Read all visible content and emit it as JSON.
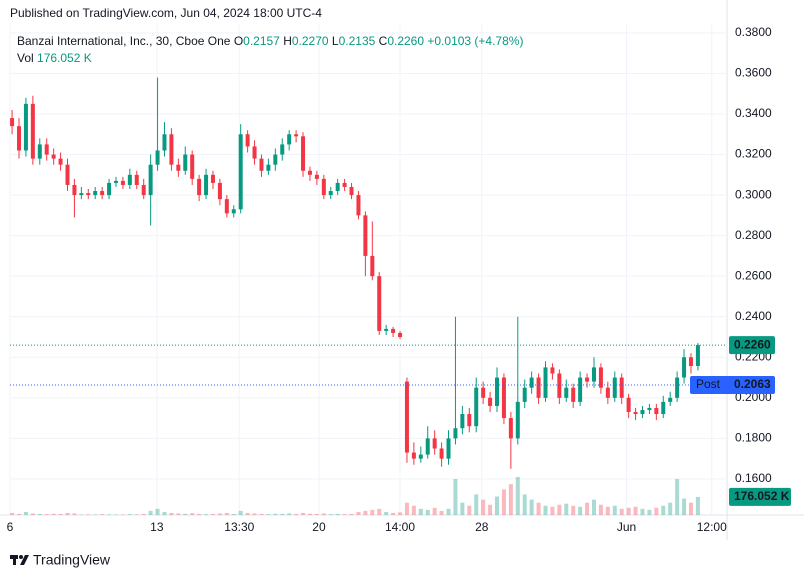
{
  "header": {
    "published": "Published on TradingView.com, Jun 04, 2024 18:00 UTC-4"
  },
  "chart_data": {
    "type": "candlestick",
    "title": "Banzai International, Inc., 30, Cboe One",
    "legend": {
      "o_label": "O",
      "open": "0.2157",
      "h_label": "H",
      "high": "0.2270",
      "l_label": "L",
      "low": "0.2135",
      "c_label": "C",
      "close": "0.2260",
      "change": "+0.0103 (+4.78%)",
      "vol_label": "Vol",
      "volume": "176.052 K"
    },
    "up_color": "#089981",
    "down_color": "#f23645",
    "grid": true,
    "categories": [
      null,
      null,
      null,
      null,
      null,
      null,
      null,
      null,
      null,
      null,
      null,
      null,
      null,
      null,
      null,
      null,
      null,
      null,
      null,
      null,
      null,
      null,
      null,
      null,
      null,
      null,
      null,
      null,
      null,
      null,
      null,
      null,
      null,
      null,
      null,
      null,
      null,
      null,
      null,
      null,
      null,
      null,
      null,
      null,
      null,
      null,
      null,
      null,
      null,
      null,
      null,
      null,
      null,
      null,
      null,
      null,
      null,
      null,
      null,
      null,
      null,
      null,
      null,
      null,
      null,
      null,
      null,
      null,
      null,
      null,
      null,
      null,
      null,
      null,
      null,
      null,
      null,
      null,
      null,
      null,
      null,
      null,
      null,
      null,
      null,
      null,
      null,
      null,
      null,
      null,
      null,
      null,
      null,
      null,
      null,
      null,
      null,
      null,
      null,
      null
    ],
    "xlim": [
      -0.3,
      103.2
    ],
    "xticks": [
      {
        "value": -0.3,
        "label": "6"
      },
      {
        "value": 20.9,
        "label": "13"
      },
      {
        "value": 32.8,
        "label": "13:30"
      },
      {
        "value": 44.3,
        "label": "20"
      },
      {
        "value": 56,
        "label": "14:00"
      },
      {
        "value": 67.8,
        "label": "28"
      },
      {
        "value": 88.7,
        "label": "Jun"
      },
      {
        "value": 101,
        "label": "12:00"
      }
    ],
    "ylim": [
      0.1422,
      0.3839
    ],
    "yticks": [
      {
        "value": 0.16,
        "label": "0.1600"
      },
      {
        "value": 0.18,
        "label": "0.1800"
      },
      {
        "value": 0.2,
        "label": "0.2000"
      },
      {
        "value": 0.22,
        "label": "0.2200"
      },
      {
        "value": 0.24,
        "label": "0.2400"
      },
      {
        "value": 0.26,
        "label": "0.2600"
      },
      {
        "value": 0.28,
        "label": "0.2800"
      },
      {
        "value": 0.3,
        "label": "0.3000"
      },
      {
        "value": 0.32,
        "label": "0.3200"
      },
      {
        "value": 0.34,
        "label": "0.3400"
      },
      {
        "value": 0.36,
        "label": "0.3600"
      },
      {
        "value": 0.38,
        "label": "0.3800"
      }
    ],
    "open": [
      0.338,
      0.334,
      0.322,
      0.345,
      0.318,
      0.325,
      0.32,
      0.318,
      0.315,
      0.305,
      0.3,
      0.301,
      0.3,
      0.302,
      0.3,
      0.306,
      0.307,
      0.305,
      0.31,
      0.305,
      0.3,
      0.315,
      0.322,
      0.33,
      0.315,
      0.312,
      0.32,
      0.308,
      0.3,
      0.31,
      0.306,
      0.298,
      0.291,
      0.293,
      0.33,
      0.324,
      0.318,
      0.312,
      0.315,
      0.32,
      0.325,
      0.33,
      0.329,
      0.312,
      0.31,
      0.308,
      0.3,
      0.302,
      0.306,
      0.304,
      0.3,
      0.29,
      0.27,
      0.26,
      0.233,
      0.234,
      0.232,
      0.208,
      0.173,
      0.17,
      0.172,
      0.18,
      0.175,
      0.17,
      0.18,
      0.185,
      0.192,
      0.186,
      0.205,
      0.2,
      0.196,
      0.21,
      0.19,
      0.18,
      0.198,
      0.205,
      0.21,
      0.2,
      0.215,
      0.212,
      0.2,
      0.205,
      0.198,
      0.21,
      0.208,
      0.215,
      0.205,
      0.2,
      0.21,
      0.2,
      0.193,
      0.192,
      0.194,
      0.195,
      0.192,
      0.198,
      0.2,
      0.21,
      0.22,
      0.2157
    ],
    "high": [
      0.342,
      0.338,
      0.348,
      0.349,
      0.328,
      0.328,
      0.323,
      0.321,
      0.318,
      0.308,
      0.304,
      0.303,
      0.304,
      0.304,
      0.308,
      0.309,
      0.309,
      0.313,
      0.312,
      0.308,
      0.32,
      0.358,
      0.336,
      0.333,
      0.318,
      0.324,
      0.322,
      0.31,
      0.313,
      0.312,
      0.308,
      0.3,
      0.295,
      0.335,
      0.332,
      0.327,
      0.32,
      0.318,
      0.323,
      0.328,
      0.332,
      0.332,
      0.331,
      0.314,
      0.312,
      0.31,
      0.304,
      0.308,
      0.308,
      0.306,
      0.302,
      0.292,
      0.287,
      0.262,
      0.236,
      0.235,
      0.233,
      0.21,
      0.178,
      0.176,
      0.186,
      0.184,
      0.178,
      0.184,
      0.24,
      0.196,
      0.195,
      0.21,
      0.208,
      0.203,
      0.215,
      0.212,
      0.193,
      0.24,
      0.209,
      0.213,
      0.212,
      0.218,
      0.217,
      0.214,
      0.209,
      0.207,
      0.213,
      0.212,
      0.22,
      0.217,
      0.208,
      0.213,
      0.212,
      0.202,
      0.195,
      0.196,
      0.197,
      0.197,
      0.201,
      0.203,
      0.213,
      0.224,
      0.222,
      0.227
    ],
    "low": [
      0.33,
      0.318,
      0.319,
      0.315,
      0.315,
      0.317,
      0.315,
      0.312,
      0.302,
      0.289,
      0.298,
      0.298,
      0.298,
      0.298,
      0.298,
      0.304,
      0.303,
      0.303,
      0.303,
      0.298,
      0.285,
      0.312,
      0.319,
      0.312,
      0.309,
      0.31,
      0.305,
      0.297,
      0.298,
      0.303,
      0.295,
      0.289,
      0.289,
      0.291,
      0.321,
      0.315,
      0.309,
      0.31,
      0.312,
      0.317,
      0.322,
      0.326,
      0.309,
      0.307,
      0.305,
      0.298,
      0.298,
      0.3,
      0.302,
      0.298,
      0.288,
      0.26,
      0.258,
      0.231,
      0.231,
      0.23,
      0.229,
      0.168,
      0.167,
      0.168,
      0.17,
      0.172,
      0.166,
      0.167,
      0.177,
      0.182,
      0.183,
      0.183,
      0.197,
      0.193,
      0.193,
      0.187,
      0.165,
      0.177,
      0.195,
      0.202,
      0.197,
      0.198,
      0.209,
      0.197,
      0.198,
      0.195,
      0.196,
      0.205,
      0.205,
      0.202,
      0.197,
      0.198,
      0.197,
      0.19,
      0.189,
      0.19,
      0.192,
      0.189,
      0.19,
      0.196,
      0.198,
      0.207,
      0.212,
      0.2135
    ],
    "close": [
      0.334,
      0.322,
      0.345,
      0.318,
      0.325,
      0.32,
      0.318,
      0.315,
      0.305,
      0.3,
      0.301,
      0.3,
      0.302,
      0.3,
      0.306,
      0.307,
      0.305,
      0.31,
      0.305,
      0.3,
      0.315,
      0.322,
      0.33,
      0.315,
      0.312,
      0.32,
      0.308,
      0.3,
      0.31,
      0.306,
      0.298,
      0.291,
      0.293,
      0.33,
      0.324,
      0.318,
      0.312,
      0.315,
      0.32,
      0.325,
      0.33,
      0.329,
      0.312,
      0.31,
      0.308,
      0.3,
      0.302,
      0.306,
      0.304,
      0.3,
      0.29,
      0.27,
      0.26,
      0.233,
      0.234,
      0.232,
      0.23,
      0.173,
      0.17,
      0.172,
      0.18,
      0.175,
      0.17,
      0.18,
      0.185,
      0.192,
      0.186,
      0.205,
      0.2,
      0.196,
      0.21,
      0.19,
      0.18,
      0.198,
      0.205,
      0.21,
      0.2,
      0.215,
      0.212,
      0.2,
      0.205,
      0.198,
      0.21,
      0.208,
      0.215,
      0.205,
      0.2,
      0.21,
      0.2,
      0.193,
      0.192,
      0.194,
      0.195,
      0.192,
      0.198,
      0.2,
      0.21,
      0.22,
      0.2157,
      0.226
    ],
    "volume": [
      20,
      10,
      30,
      15,
      10,
      8,
      12,
      10,
      20,
      15,
      5,
      6,
      5,
      8,
      6,
      5,
      5,
      8,
      6,
      10,
      40,
      60,
      30,
      20,
      15,
      12,
      18,
      10,
      8,
      10,
      15,
      20,
      10,
      40,
      20,
      15,
      10,
      8,
      12,
      10,
      15,
      10,
      20,
      12,
      10,
      15,
      8,
      10,
      8,
      10,
      30,
      40,
      50,
      60,
      30,
      20,
      25,
      120,
      90,
      60,
      50,
      70,
      40,
      60,
      350,
      120,
      90,
      200,
      150,
      100,
      180,
      250,
      300,
      370,
      200,
      150,
      120,
      90,
      80,
      100,
      110,
      90,
      80,
      120,
      150,
      100,
      80,
      90,
      60,
      70,
      80,
      60,
      50,
      70,
      90,
      120,
      350,
      160,
      120,
      176.052
    ],
    "last_price": {
      "value": 0.226,
      "label": "0.2260"
    },
    "post": {
      "name": "Post",
      "value": 0.2063,
      "label": "0.2063"
    }
  },
  "footer": {
    "brand": "TradingView"
  }
}
